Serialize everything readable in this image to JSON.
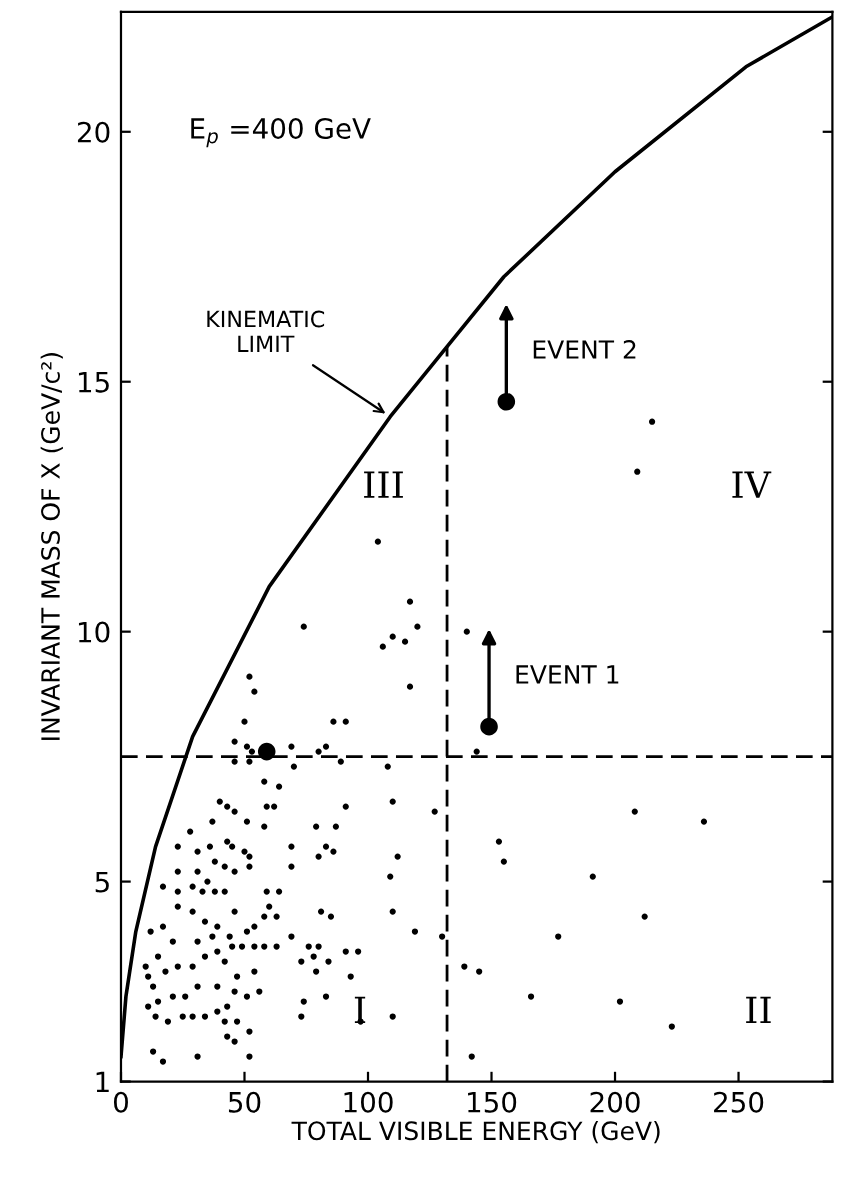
{
  "chart_data": {
    "type": "scatter",
    "xlabel": "TOTAL VISIBLE ENERGY (GeV)",
    "ylabel": "INVARIANT MASS OF X (GeV/c²)",
    "xlim": [
      0,
      288
    ],
    "ylim": [
      1,
      22.4
    ],
    "xticks": [
      0,
      50,
      100,
      150,
      200,
      250
    ],
    "yticks": [
      1,
      5,
      10,
      15,
      20
    ],
    "grid": false,
    "marker": "circle",
    "series": [
      {
        "color": "#000000",
        "x": [
          74,
          117,
          106,
          110,
          115,
          120,
          117,
          52,
          54,
          50,
          46,
          51,
          53,
          46,
          52,
          69,
          70,
          80,
          83,
          86,
          91,
          89,
          108,
          140,
          144,
          58,
          64,
          59,
          62,
          58,
          37,
          40,
          43,
          46,
          51,
          28,
          23,
          31,
          36,
          43,
          45,
          50,
          52,
          38,
          42,
          46,
          52,
          31,
          23,
          69,
          69,
          79,
          87,
          86,
          91,
          80,
          83,
          110,
          112,
          127,
          109,
          110,
          119,
          130,
          139,
          145,
          153,
          155,
          208,
          236,
          191,
          212,
          177,
          166,
          202,
          223,
          142,
          110,
          97,
          73,
          74,
          83,
          79,
          84,
          78,
          80,
          96,
          91,
          93,
          81,
          85,
          64,
          60,
          59,
          63,
          58,
          54,
          51,
          46,
          42,
          38,
          35,
          33,
          29,
          23,
          17,
          23,
          29,
          34,
          39,
          44,
          45,
          39,
          34,
          29,
          23,
          18,
          15,
          12,
          17,
          21,
          31,
          37,
          42,
          49,
          54,
          58,
          63,
          69,
          76,
          73,
          54,
          47,
          39,
          31,
          26,
          21,
          15,
          13,
          11,
          10,
          11,
          14,
          19,
          25,
          29,
          34,
          39,
          43,
          46,
          51,
          56,
          42,
          47,
          43,
          46,
          52,
          13,
          17,
          31,
          52,
          104,
          215,
          209
        ],
        "values": [
          10.1,
          10.6,
          9.7,
          9.9,
          9.8,
          10.1,
          8.9,
          9.1,
          8.8,
          8.2,
          7.8,
          7.7,
          7.6,
          7.4,
          7.4,
          7.7,
          7.3,
          7.6,
          7.7,
          8.2,
          8.2,
          7.4,
          7.3,
          10.0,
          7.6,
          7.0,
          6.9,
          6.5,
          6.5,
          6.1,
          6.2,
          6.6,
          6.5,
          6.4,
          6.2,
          6.0,
          5.7,
          5.6,
          5.7,
          5.8,
          5.7,
          5.6,
          5.5,
          5.4,
          5.3,
          5.2,
          5.3,
          5.2,
          5.2,
          5.7,
          5.3,
          6.1,
          6.1,
          5.6,
          6.5,
          5.5,
          5.7,
          6.6,
          5.5,
          6.4,
          5.1,
          4.4,
          4.0,
          3.9,
          3.3,
          3.2,
          5.8,
          5.4,
          6.4,
          6.2,
          5.1,
          4.3,
          3.9,
          2.7,
          2.6,
          2.1,
          1.5,
          2.3,
          2.2,
          2.3,
          2.6,
          2.7,
          3.2,
          3.4,
          3.5,
          3.7,
          3.6,
          3.6,
          3.1,
          4.4,
          4.3,
          4.8,
          4.5,
          4.8,
          4.3,
          4.3,
          4.1,
          4.0,
          4.4,
          4.8,
          4.8,
          5.0,
          4.8,
          4.9,
          4.8,
          4.9,
          4.5,
          4.4,
          4.2,
          4.1,
          3.9,
          3.7,
          3.6,
          3.5,
          3.3,
          3.3,
          3.2,
          3.5,
          4.0,
          4.1,
          3.8,
          3.8,
          3.9,
          3.4,
          3.7,
          3.7,
          3.7,
          3.7,
          3.9,
          3.7,
          3.4,
          3.2,
          3.1,
          2.9,
          2.9,
          2.7,
          2.7,
          2.6,
          2.9,
          3.1,
          3.3,
          2.5,
          2.3,
          2.2,
          2.3,
          2.3,
          2.3,
          2.4,
          2.5,
          2.8,
          2.7,
          2.8,
          2.2,
          2.2,
          1.9,
          1.8,
          2.0,
          1.6,
          1.4,
          1.5,
          1.5,
          11.8,
          14.2,
          13.2
        ]
      },
      {
        "color": "#000000",
        "x": [
          59,
          149,
          156
        ],
        "values": [
          7.6,
          8.1,
          14.6
        ]
      },
      {
        "type": "line",
        "color": "#000000",
        "marker": "none",
        "x": [
          0,
          2,
          6,
          14,
          29,
          60,
          109,
          132,
          155,
          200,
          253,
          288
        ],
        "values": [
          1.5,
          2.7,
          4.0,
          5.7,
          7.9,
          10.9,
          14.3,
          15.7,
          17.1,
          19.2,
          21.3,
          22.3
        ]
      }
    ],
    "ref_lines": [
      {
        "axis": "x",
        "value": 132,
        "line_style": "dashed",
        "color": "#000000"
      },
      {
        "axis": "y",
        "value": 7.5,
        "line_style": "dashed",
        "color": "#000000"
      }
    ],
    "annotations": [
      "E$_{p}$ =400 GeV",
      "I",
      "II",
      "III",
      "IV",
      {
        "text": "KINEMATIC\nLIMIT",
        "x": 109,
        "y": 14.3
      },
      {
        "text": "EVENT 1",
        "x": 149,
        "y": 8.1
      },
      {
        "text": "EVENT 2",
        "x": 156,
        "y": 14.6
      }
    ]
  }
}
